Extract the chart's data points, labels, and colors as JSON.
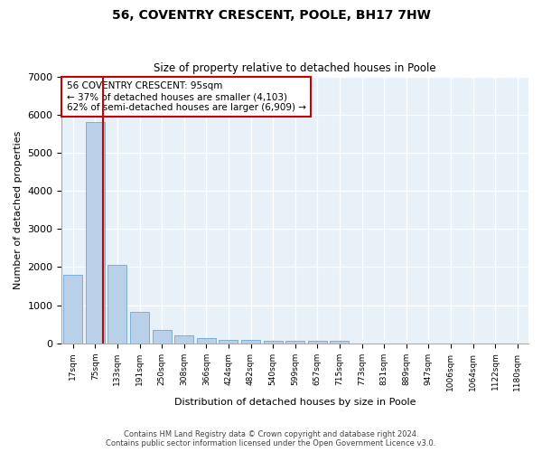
{
  "title": "56, COVENTRY CRESCENT, POOLE, BH17 7HW",
  "subtitle": "Size of property relative to detached houses in Poole",
  "xlabel": "Distribution of detached houses by size in Poole",
  "ylabel": "Number of detached properties",
  "categories": [
    "17sqm",
    "75sqm",
    "133sqm",
    "191sqm",
    "250sqm",
    "308sqm",
    "366sqm",
    "424sqm",
    "482sqm",
    "540sqm",
    "599sqm",
    "657sqm",
    "715sqm",
    "773sqm",
    "831sqm",
    "889sqm",
    "947sqm",
    "1006sqm",
    "1064sqm",
    "1122sqm",
    "1180sqm"
  ],
  "values": [
    1800,
    5800,
    2050,
    820,
    340,
    220,
    130,
    100,
    80,
    70,
    55,
    55,
    55,
    0,
    0,
    0,
    0,
    0,
    0,
    0,
    0
  ],
  "bar_color": "#b8d0e8",
  "bar_edge_color": "#6fa8d0",
  "background_color": "#e8f0f8",
  "grid_color": "#ffffff",
  "property_line_color": "#cc0000",
  "annotation_text": "56 COVENTRY CRESCENT: 95sqm\n← 37% of detached houses are smaller (4,103)\n62% of semi-detached houses are larger (6,909) →",
  "annotation_box_color": "#cc0000",
  "ylim": [
    0,
    7000
  ],
  "yticks": [
    0,
    1000,
    2000,
    3000,
    4000,
    5000,
    6000,
    7000
  ],
  "footnote1": "Contains HM Land Registry data © Crown copyright and database right 2024.",
  "footnote2": "Contains public sector information licensed under the Open Government Licence v3.0."
}
